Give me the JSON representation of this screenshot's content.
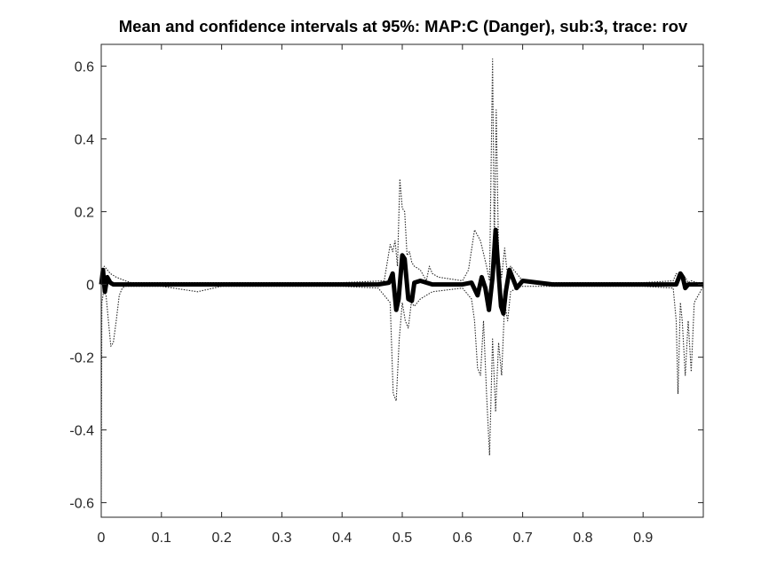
{
  "chart_data": {
    "type": "line",
    "title": "Mean and confidence intervals at 95%: MAP:C (Danger), sub:3, trace: rov",
    "xlabel": "",
    "ylabel": "",
    "xlim": [
      0,
      1
    ],
    "ylim": [
      -0.64,
      0.66
    ],
    "grid": false,
    "legend": "none",
    "x_ticks": [
      0,
      0.1,
      0.2,
      0.3,
      0.4,
      0.5,
      0.6,
      0.7,
      0.8,
      0.9
    ],
    "x_tick_labels": [
      "0",
      "0.1",
      "0.2",
      "0.3",
      "0.4",
      "0.5",
      "0.6",
      "0.7",
      "0.8",
      "0.9"
    ],
    "y_ticks": [
      -0.6,
      -0.4,
      -0.2,
      0,
      0.2,
      0.4,
      0.6
    ],
    "y_tick_labels": [
      "-0.6",
      "-0.4",
      "-0.2",
      "0",
      "0.2",
      "0.4",
      "0.6"
    ],
    "colors": {
      "mean": "#000000",
      "ci": "#000000",
      "axes": "#262626"
    },
    "series": [
      {
        "style": "solid-thick",
        "x": [
          0,
          0.003,
          0.006,
          0.01,
          0.015,
          0.02,
          0.03,
          0.05,
          0.1,
          0.2,
          0.3,
          0.4,
          0.46,
          0.478,
          0.484,
          0.49,
          0.494,
          0.5,
          0.504,
          0.51,
          0.516,
          0.52,
          0.53,
          0.55,
          0.6,
          0.615,
          0.625,
          0.632,
          0.638,
          0.644,
          0.65,
          0.655,
          0.66,
          0.664,
          0.668,
          0.672,
          0.678,
          0.69,
          0.7,
          0.75,
          0.8,
          0.9,
          0.955,
          0.962,
          0.966,
          0.97,
          0.975,
          1.0
        ],
        "y": [
          0,
          0.04,
          -0.02,
          0.02,
          0.005,
          0,
          0,
          0,
          0,
          0,
          0,
          0,
          0,
          0.005,
          0.03,
          -0.07,
          -0.04,
          0.08,
          0.07,
          -0.04,
          -0.045,
          0.005,
          0.01,
          0,
          0,
          0.005,
          -0.03,
          0.02,
          -0.01,
          -0.07,
          0.02,
          0.15,
          0.03,
          -0.06,
          -0.08,
          -0.02,
          0.04,
          -0.01,
          0.01,
          0,
          0,
          0,
          0,
          0.03,
          0.02,
          -0.01,
          0,
          0
        ]
      },
      {
        "style": "dotted-upper",
        "x": [
          0,
          0.005,
          0.015,
          0.025,
          0.04,
          0.05,
          0.1,
          0.2,
          0.3,
          0.4,
          0.47,
          0.48,
          0.484,
          0.488,
          0.492,
          0.496,
          0.5,
          0.504,
          0.508,
          0.512,
          0.516,
          0.52,
          0.53,
          0.54,
          0.545,
          0.55,
          0.56,
          0.6,
          0.61,
          0.62,
          0.63,
          0.64,
          0.645,
          0.65,
          0.653,
          0.656,
          0.66,
          0.665,
          0.67,
          0.675,
          0.68,
          0.69,
          0.7,
          0.71,
          0.8,
          0.9,
          0.95,
          0.955,
          0.96,
          0.965,
          0.97,
          0.975,
          0.98,
          0.99,
          1.0
        ],
        "y": [
          0.02,
          0.05,
          0.03,
          0.02,
          0.01,
          0.005,
          0.005,
          0.005,
          0.005,
          0.005,
          0.01,
          0.11,
          0.09,
          0.12,
          0.05,
          0.29,
          0.21,
          0.2,
          0.08,
          0.09,
          0.06,
          0.05,
          0.04,
          0.01,
          0.05,
          0.03,
          0.02,
          0.01,
          0.04,
          0.15,
          0.12,
          0.05,
          0.01,
          0.62,
          0.1,
          0.48,
          0.08,
          0.02,
          0.1,
          0.02,
          0.05,
          0.03,
          0.01,
          0.005,
          0.005,
          0.005,
          0.01,
          0.03,
          0.02,
          0.01,
          0.02,
          0.005,
          0.01,
          0.005,
          0.005
        ]
      },
      {
        "style": "dotted-lower",
        "x": [
          0,
          0.001,
          0.004,
          0.008,
          0.012,
          0.016,
          0.02,
          0.025,
          0.03,
          0.035,
          0.04,
          0.05,
          0.1,
          0.16,
          0.2,
          0.3,
          0.4,
          0.46,
          0.48,
          0.485,
          0.49,
          0.495,
          0.5,
          0.505,
          0.51,
          0.515,
          0.52,
          0.53,
          0.55,
          0.6,
          0.615,
          0.62,
          0.625,
          0.63,
          0.635,
          0.64,
          0.645,
          0.65,
          0.655,
          0.66,
          0.665,
          0.67,
          0.675,
          0.68,
          0.69,
          0.7,
          0.75,
          0.8,
          0.9,
          0.95,
          0.955,
          0.958,
          0.962,
          0.965,
          0.97,
          0.975,
          0.98,
          0.985,
          1.0
        ],
        "y": [
          -0.6,
          -0.05,
          -0.02,
          -0.03,
          -0.1,
          -0.17,
          -0.16,
          -0.1,
          -0.03,
          -0.01,
          -0.005,
          -0.005,
          -0.005,
          -0.02,
          -0.005,
          -0.005,
          -0.005,
          -0.01,
          -0.05,
          -0.3,
          -0.32,
          -0.15,
          -0.05,
          -0.1,
          -0.12,
          -0.05,
          -0.06,
          -0.04,
          -0.02,
          -0.01,
          -0.04,
          -0.1,
          -0.23,
          -0.25,
          -0.1,
          -0.3,
          -0.47,
          -0.15,
          -0.35,
          -0.16,
          -0.25,
          -0.05,
          -0.1,
          -0.02,
          -0.01,
          -0.005,
          -0.005,
          -0.005,
          -0.005,
          -0.01,
          -0.1,
          -0.3,
          -0.05,
          -0.1,
          -0.25,
          -0.1,
          -0.24,
          -0.05,
          -0.005
        ]
      }
    ]
  }
}
